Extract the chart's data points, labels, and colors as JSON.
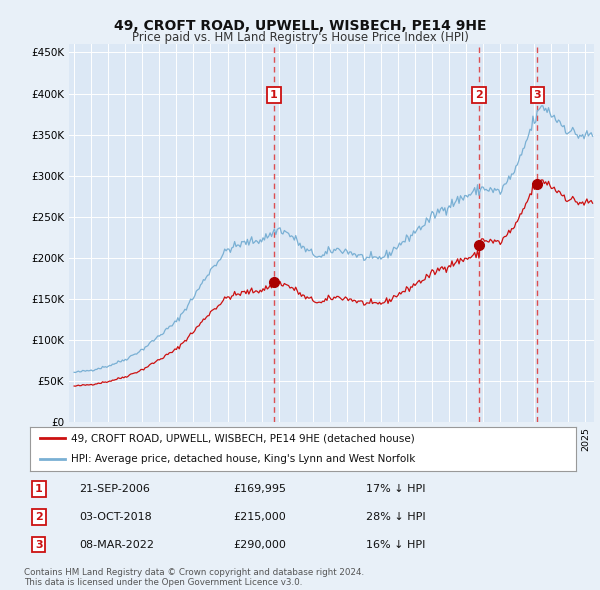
{
  "title": "49, CROFT ROAD, UPWELL, WISBECH, PE14 9HE",
  "subtitle": "Price paid vs. HM Land Registry's House Price Index (HPI)",
  "background_color": "#e8f0f8",
  "plot_bg_color": "#dce8f5",
  "grid_color": "#ffffff",
  "ylim": [
    0,
    460000
  ],
  "yticks": [
    0,
    50000,
    100000,
    150000,
    200000,
    250000,
    300000,
    350000,
    400000,
    450000
  ],
  "ytick_labels": [
    "£0",
    "£50K",
    "£100K",
    "£150K",
    "£200K",
    "£250K",
    "£300K",
    "£350K",
    "£400K",
    "£450K"
  ],
  "sale_info": [
    {
      "label": "1",
      "date": "21-SEP-2006",
      "price": "£169,995",
      "hpi_diff": "17% ↓ HPI"
    },
    {
      "label": "2",
      "date": "03-OCT-2018",
      "price": "£215,000",
      "hpi_diff": "28% ↓ HPI"
    },
    {
      "label": "3",
      "date": "08-MAR-2022",
      "price": "£290,000",
      "hpi_diff": "16% ↓ HPI"
    }
  ],
  "sale_decimal_dates": [
    2006.722,
    2018.752,
    2022.181
  ],
  "sale_prices_val": [
    169995,
    215000,
    290000
  ],
  "legend_line1": "49, CROFT ROAD, UPWELL, WISBECH, PE14 9HE (detached house)",
  "legend_line2": "HPI: Average price, detached house, King's Lynn and West Norfolk",
  "footer1": "Contains HM Land Registry data © Crown copyright and database right 2024.",
  "footer2": "This data is licensed under the Open Government Licence v3.0.",
  "hpi_color": "#7ab0d4",
  "price_color": "#cc1111",
  "vline_color": "#dd3333",
  "box_color": "#cc1111",
  "dot_color": "#aa0000"
}
